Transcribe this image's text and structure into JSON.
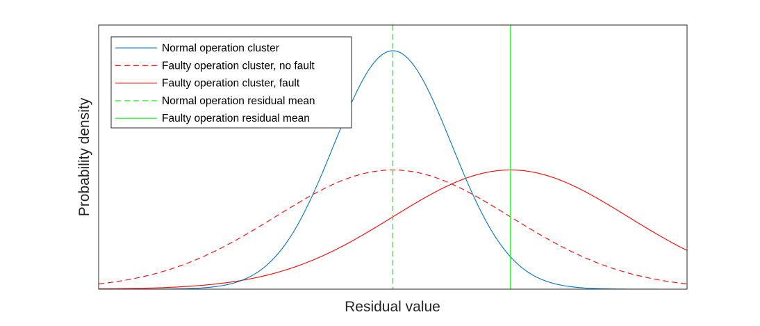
{
  "chart_data": {
    "type": "line",
    "xlabel": "Residual value",
    "ylabel": "Probability density",
    "x_ticks_shown": false,
    "y_ticks_shown": false,
    "grid": false,
    "legend_position": "top-left",
    "xlim": [
      -5,
      5
    ],
    "ylim": [
      0,
      1.0
    ],
    "series": [
      {
        "name": "Normal operation cluster",
        "kind": "gaussian",
        "mean": 0,
        "sd": 1.0,
        "peak": 1.0,
        "color": "#0072BD",
        "dash": "solid"
      },
      {
        "name": "Faulty operation cluster, no fault",
        "kind": "gaussian",
        "mean": 0,
        "sd": 2.0,
        "peak": 0.5,
        "color": "#FF0000",
        "dash": "dashed"
      },
      {
        "name": "Faulty operation cluster, fault",
        "kind": "gaussian",
        "mean": 2.0,
        "sd": 2.0,
        "peak": 0.5,
        "color": "#FF0000",
        "dash": "solid"
      },
      {
        "name": "Normal operation residual mean",
        "kind": "vline",
        "x": 0,
        "color": "#00FF00",
        "dash": "dashed"
      },
      {
        "name": "Faulty operation residual mean",
        "kind": "vline",
        "x": 2.0,
        "color": "#00FF00",
        "dash": "solid"
      }
    ]
  }
}
